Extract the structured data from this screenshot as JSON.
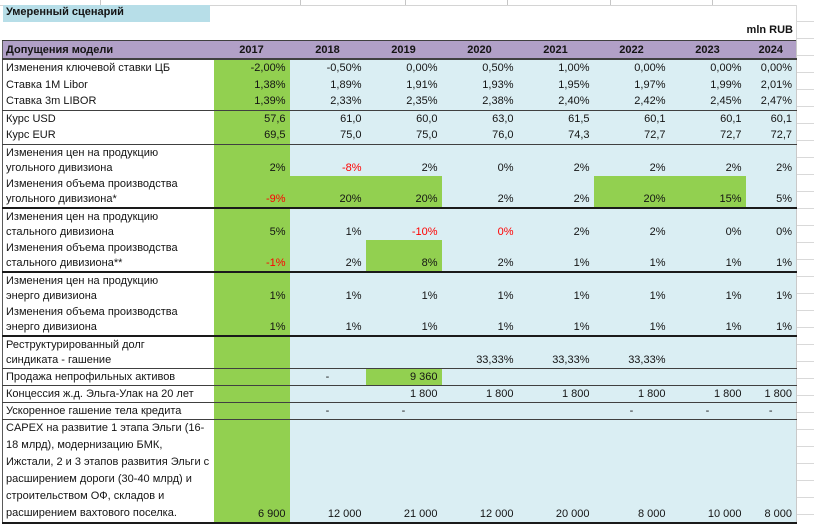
{
  "meta": {
    "title": "Умеренный сценарий",
    "unit": "mln RUB"
  },
  "colors": {
    "highlight_green": "#92D050",
    "cell_blue": "#DAEEF3",
    "header_purple": "#B1A0C7",
    "title_blue": "#B7DEE8",
    "negative_red": "#FF0000"
  },
  "table": {
    "header": {
      "label": "Допущения модели",
      "years": [
        "2017",
        "2018",
        "2019",
        "2020",
        "2021",
        "2022",
        "2023",
        "2024"
      ]
    },
    "rows": [
      {
        "label": "Изменения ключевой ставки ЦБ",
        "values": [
          "-2,00%",
          "-0,50%",
          "0,00%",
          "0,50%",
          "1,00%",
          "0,00%",
          "0,00%",
          "0,00%"
        ],
        "h": 1
      },
      {
        "label": "Ставка 1M Libor",
        "values": [
          "1,38%",
          "1,89%",
          "1,91%",
          "1,93%",
          "1,95%",
          "1,97%",
          "1,99%",
          "2,01%"
        ],
        "h": 1
      },
      {
        "label": "Ставка 3m LIBOR",
        "values": [
          "1,39%",
          "2,33%",
          "2,35%",
          "2,38%",
          "2,40%",
          "2,42%",
          "2,45%",
          "2,47%"
        ],
        "h": 1,
        "bb": "mid"
      },
      {
        "label": "Курс USD",
        "values": [
          "57,6",
          "61,0",
          "60,0",
          "63,0",
          "61,5",
          "60,1",
          "60,1",
          "60,1"
        ],
        "h": 1
      },
      {
        "label": "Курс EUR",
        "values": [
          "69,5",
          "75,0",
          "75,0",
          "76,0",
          "74,3",
          "72,7",
          "72,7",
          "72,7"
        ],
        "h": 1,
        "bb": "mid"
      },
      {
        "label": "Изменения цен на продукцию угольного дивизиона",
        "values": [
          "2%",
          "-8%",
          "2%",
          "0%",
          "2%",
          "2%",
          "2%",
          "2%"
        ],
        "red": [
          1
        ],
        "h": 2
      },
      {
        "label": "Изменения объема производства угольного дивизиона*",
        "values": [
          "-9%",
          "20%",
          "20%",
          "2%",
          "2%",
          "20%",
          "15%",
          "5%"
        ],
        "red": [
          0
        ],
        "green": [
          1,
          2,
          5,
          6
        ],
        "h": 2,
        "bb": "thick"
      },
      {
        "label": "Изменения цен на продукцию стального дивизиона",
        "values": [
          "5%",
          "1%",
          "-10%",
          "0%",
          "2%",
          "2%",
          "0%",
          "0%"
        ],
        "red": [
          2,
          3
        ],
        "h": 2
      },
      {
        "label": "Изменения объема производства стального дивизиона**",
        "values": [
          "-1%",
          "2%",
          "8%",
          "2%",
          "1%",
          "1%",
          "1%",
          "1%"
        ],
        "red": [
          0
        ],
        "green": [
          2
        ],
        "h": 2,
        "bb": "thick"
      },
      {
        "label": "Изменения цен на продукцию энерго дивизиона",
        "values": [
          "1%",
          "1%",
          "1%",
          "1%",
          "1%",
          "1%",
          "1%",
          "1%"
        ],
        "h": 2
      },
      {
        "label": "Изменения объема производства энерго дивизиона",
        "values": [
          "1%",
          "1%",
          "1%",
          "1%",
          "1%",
          "1%",
          "1%",
          "1%"
        ],
        "h": 2,
        "bb": "thick"
      },
      {
        "label": "Реструктурированный долг синдиката - гашение",
        "values": [
          "",
          "",
          "",
          "33,33%",
          "33,33%",
          "33,33%",
          "",
          ""
        ],
        "h": 2,
        "bb": "mid"
      },
      {
        "label": "Продажа непрофильных активов",
        "values": [
          "",
          "-",
          "9 360",
          "",
          "",
          "",
          "",
          ""
        ],
        "green": [
          2
        ],
        "h": 1,
        "bb": "mid"
      },
      {
        "label": "Концессия ж.д. Эльга-Улак на 20 лет",
        "values": [
          "",
          "",
          "1 800",
          "1 800",
          "1 800",
          "1 800",
          "1 800",
          "1 800"
        ],
        "h": 1,
        "bb": "mid"
      },
      {
        "label": "Ускоренное гашение тела кредита",
        "values": [
          "",
          "-",
          "-",
          "",
          "",
          "-",
          "-",
          "-"
        ],
        "h": 1,
        "bb": "mid"
      },
      {
        "label": "CAPEX на развитие 1 этапа Эльги (16-18 млрд), модернизацию БМК, Ижстали, 2 и 3 этапов развития Эльги с расширением дороги (30-40 млрд) и строительством ОФ, складов и расширением вахтового поселка.",
        "values": [
          "6 900",
          "12 000",
          "21 000",
          "12 000",
          "20 000",
          "8 000",
          "10 000",
          "8 000"
        ],
        "h": 6,
        "bb": "thick"
      }
    ]
  }
}
